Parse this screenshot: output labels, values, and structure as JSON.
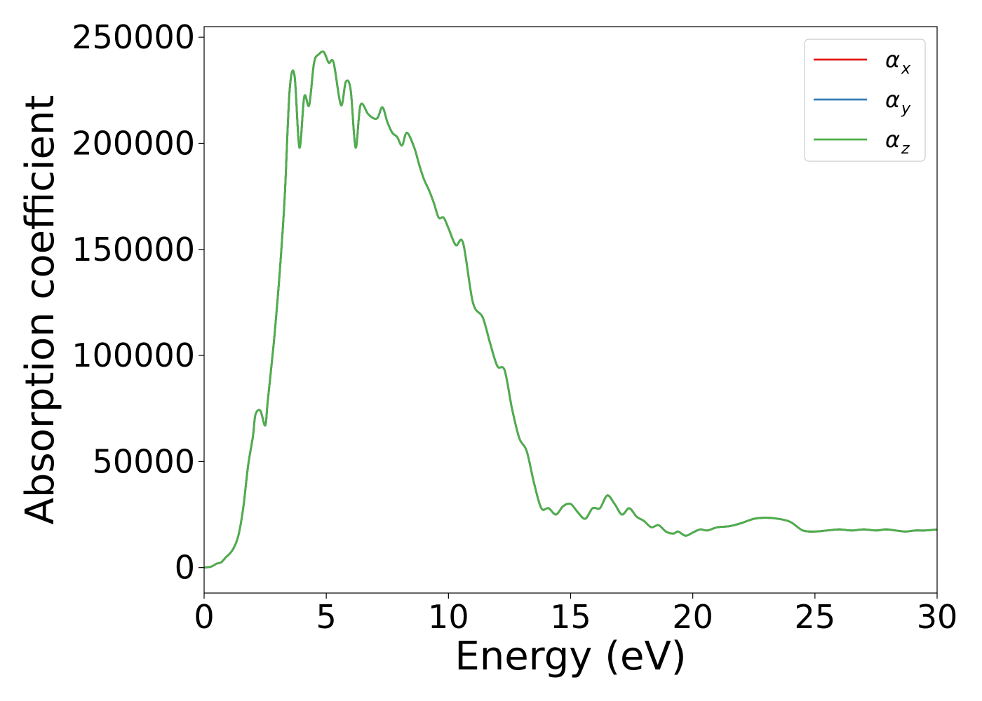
{
  "chart_data": {
    "type": "line",
    "title": "",
    "xlabel": "Energy (eV)",
    "ylabel": "Absorption coefficient",
    "xlim": [
      0,
      30
    ],
    "ylim": [
      -12000,
      255000
    ],
    "xticks": [
      0,
      5,
      10,
      15,
      20,
      25,
      30
    ],
    "xtick_labels": [
      "0",
      "5",
      "10",
      "15",
      "20",
      "25",
      "30"
    ],
    "yticks": [
      0,
      50000,
      100000,
      150000,
      200000,
      250000
    ],
    "ytick_labels": [
      "0",
      "50000",
      "100000",
      "150000",
      "200000",
      "250000"
    ],
    "grid": false,
    "legend_position": "top-right",
    "series": [
      {
        "name": "α",
        "subscript": "x",
        "color": "#e41a1c"
      },
      {
        "name": "α",
        "subscript": "y",
        "color": "#377eb8"
      },
      {
        "name": "α",
        "subscript": "z",
        "color": "#4daf4a"
      }
    ],
    "x": [
      0,
      0.3,
      0.5,
      0.7,
      0.9,
      1.0,
      1.2,
      1.4,
      1.6,
      1.8,
      2.0,
      2.1,
      2.3,
      2.5,
      2.6,
      2.8,
      2.9,
      3.1,
      3.3,
      3.5,
      3.7,
      3.9,
      4.1,
      4.3,
      4.5,
      4.7,
      4.9,
      5.1,
      5.3,
      5.6,
      5.8,
      6.0,
      6.2,
      6.4,
      6.7,
      6.9,
      7.1,
      7.3,
      7.5,
      7.7,
      7.9,
      8.1,
      8.3,
      8.6,
      8.8,
      9.0,
      9.2,
      9.4,
      9.6,
      9.8,
      10.0,
      10.3,
      10.6,
      11.0,
      11.4,
      11.7,
      12.0,
      12.3,
      12.6,
      12.9,
      13.2,
      13.5,
      13.8,
      14.1,
      14.4,
      14.7,
      15.0,
      15.3,
      15.6,
      15.9,
      16.2,
      16.5,
      16.8,
      17.1,
      17.4,
      17.7,
      18.0,
      18.3,
      18.6,
      18.9,
      19.2,
      19.4,
      19.7,
      20.0,
      20.3,
      20.6,
      21.0,
      21.5,
      22.0,
      22.5,
      23.0,
      23.5,
      24.0,
      24.5,
      25.0,
      25.5,
      26.0,
      26.5,
      27.0,
      27.5,
      27.9,
      28.3,
      28.7,
      29.1,
      29.5,
      30.0
    ],
    "values": [
      0,
      500,
      1800,
      2500,
      5000,
      6000,
      9000,
      15000,
      28000,
      48000,
      62000,
      72000,
      74000,
      67000,
      78000,
      100000,
      112000,
      140000,
      175000,
      225000,
      232000,
      198000,
      222000,
      218000,
      238000,
      242000,
      243000,
      238000,
      238000,
      218000,
      229000,
      225000,
      198000,
      218000,
      214000,
      212000,
      212000,
      217000,
      210000,
      205000,
      203000,
      199000,
      205000,
      198000,
      190000,
      183000,
      178000,
      172000,
      165000,
      165000,
      160000,
      152000,
      153000,
      125000,
      118000,
      106000,
      95000,
      93000,
      75000,
      61000,
      55000,
      40000,
      28000,
      28000,
      25000,
      29000,
      30000,
      26000,
      23000,
      28000,
      28000,
      34000,
      30000,
      25000,
      28000,
      24000,
      22000,
      19000,
      20000,
      17000,
      16000,
      17000,
      15000,
      16500,
      18000,
      17500,
      19000,
      19500,
      21000,
      23000,
      23500,
      23000,
      21500,
      17500,
      17000,
      17500,
      18000,
      17500,
      18000,
      17500,
      18000,
      17500,
      17000,
      17500,
      17500,
      18000
    ]
  }
}
